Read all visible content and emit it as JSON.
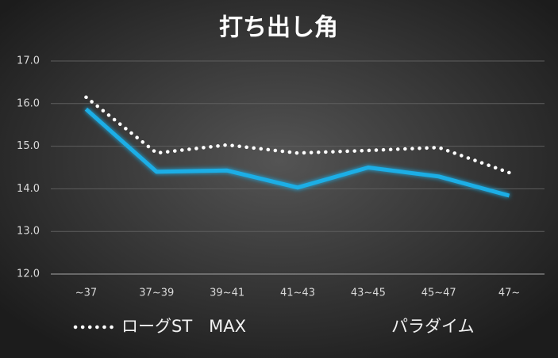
{
  "chart_data": {
    "type": "line",
    "title": "打ち出し角",
    "categories": [
      "~37",
      "37~39",
      "39~41",
      "41~43",
      "43~45",
      "45~47",
      "47~"
    ],
    "series": [
      {
        "name": "ローグST　MAX",
        "color": "#ffffff",
        "style": "dotted",
        "values": [
          16.15,
          14.84,
          15.03,
          14.84,
          14.9,
          14.97,
          14.38
        ]
      },
      {
        "name": "パラダイム",
        "color": "#1aaee6",
        "style": "solid",
        "values": [
          15.87,
          14.4,
          14.43,
          14.03,
          14.5,
          14.29,
          13.84
        ]
      }
    ],
    "ylim": [
      12,
      17
    ],
    "yticks": [
      {
        "value": 12,
        "label": "12.0"
      },
      {
        "value": 13,
        "label": "13.0"
      },
      {
        "value": 14,
        "label": "14.0"
      },
      {
        "value": 15,
        "label": "15.0"
      },
      {
        "value": 16,
        "label": "16.0"
      },
      {
        "value": 17,
        "label": "17.0"
      }
    ],
    "grid": true,
    "legend": "bottom"
  }
}
